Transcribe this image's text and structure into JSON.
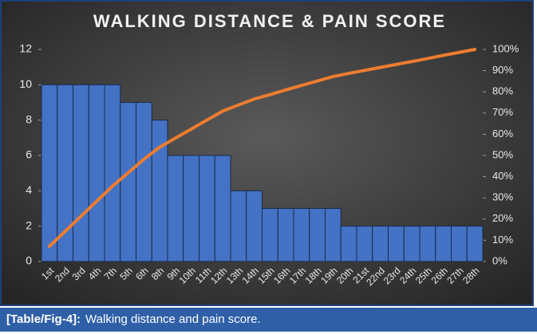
{
  "chart_data": {
    "type": "bar",
    "title": "WALKING DISTANCE & PAIN SCORE",
    "categories": [
      "1st",
      "2nd",
      "3rd",
      "4th",
      "7th",
      "5th",
      "6th",
      "8th",
      "9th",
      "10th",
      "11th",
      "12th",
      "13th",
      "14th",
      "15th",
      "16th",
      "17th",
      "18th",
      "19th",
      "20th",
      "21st",
      "22nd",
      "23rd",
      "24th",
      "25th",
      "26th",
      "27th",
      "28th"
    ],
    "series": [
      {
        "type": "bar",
        "color": "#4472c4",
        "values": [
          10,
          10,
          10,
          10,
          10,
          9,
          9,
          8,
          6,
          6,
          6,
          6,
          4,
          4,
          3,
          3,
          3,
          3,
          3,
          2,
          2,
          2,
          2,
          2,
          2,
          2,
          2,
          2
        ]
      },
      {
        "type": "line",
        "axis": "y2",
        "color": "#ed7d31",
        "values": [
          7.1,
          14.2,
          21.3,
          28.4,
          35.5,
          41.8,
          48.2,
          53.9,
          58.2,
          62.4,
          66.7,
          70.9,
          73.8,
          76.6,
          78.7,
          80.9,
          83.0,
          85.1,
          87.2,
          88.7,
          90.1,
          91.5,
          92.9,
          94.3,
          95.7,
          97.2,
          98.6,
          100
        ]
      }
    ],
    "ylim": [
      0,
      12
    ],
    "yticks": [
      0,
      2,
      4,
      6,
      8,
      10,
      12
    ],
    "y2lim": [
      0,
      100
    ],
    "y2ticks": [
      {
        "value": 0,
        "label": "0%"
      },
      {
        "value": 10,
        "label": "10%"
      },
      {
        "value": 20,
        "label": "20%"
      },
      {
        "value": 30,
        "label": "30%"
      },
      {
        "value": 40,
        "label": "40%"
      },
      {
        "value": 50,
        "label": "50%"
      },
      {
        "value": 60,
        "label": "60%"
      },
      {
        "value": 70,
        "label": "70%"
      },
      {
        "value": 80,
        "label": "80%"
      },
      {
        "value": 90,
        "label": "90%"
      },
      {
        "value": 100,
        "label": "100%"
      }
    ]
  },
  "caption": {
    "label": "[Table/Fig-4]:",
    "text": "Walking distance and pain score."
  }
}
